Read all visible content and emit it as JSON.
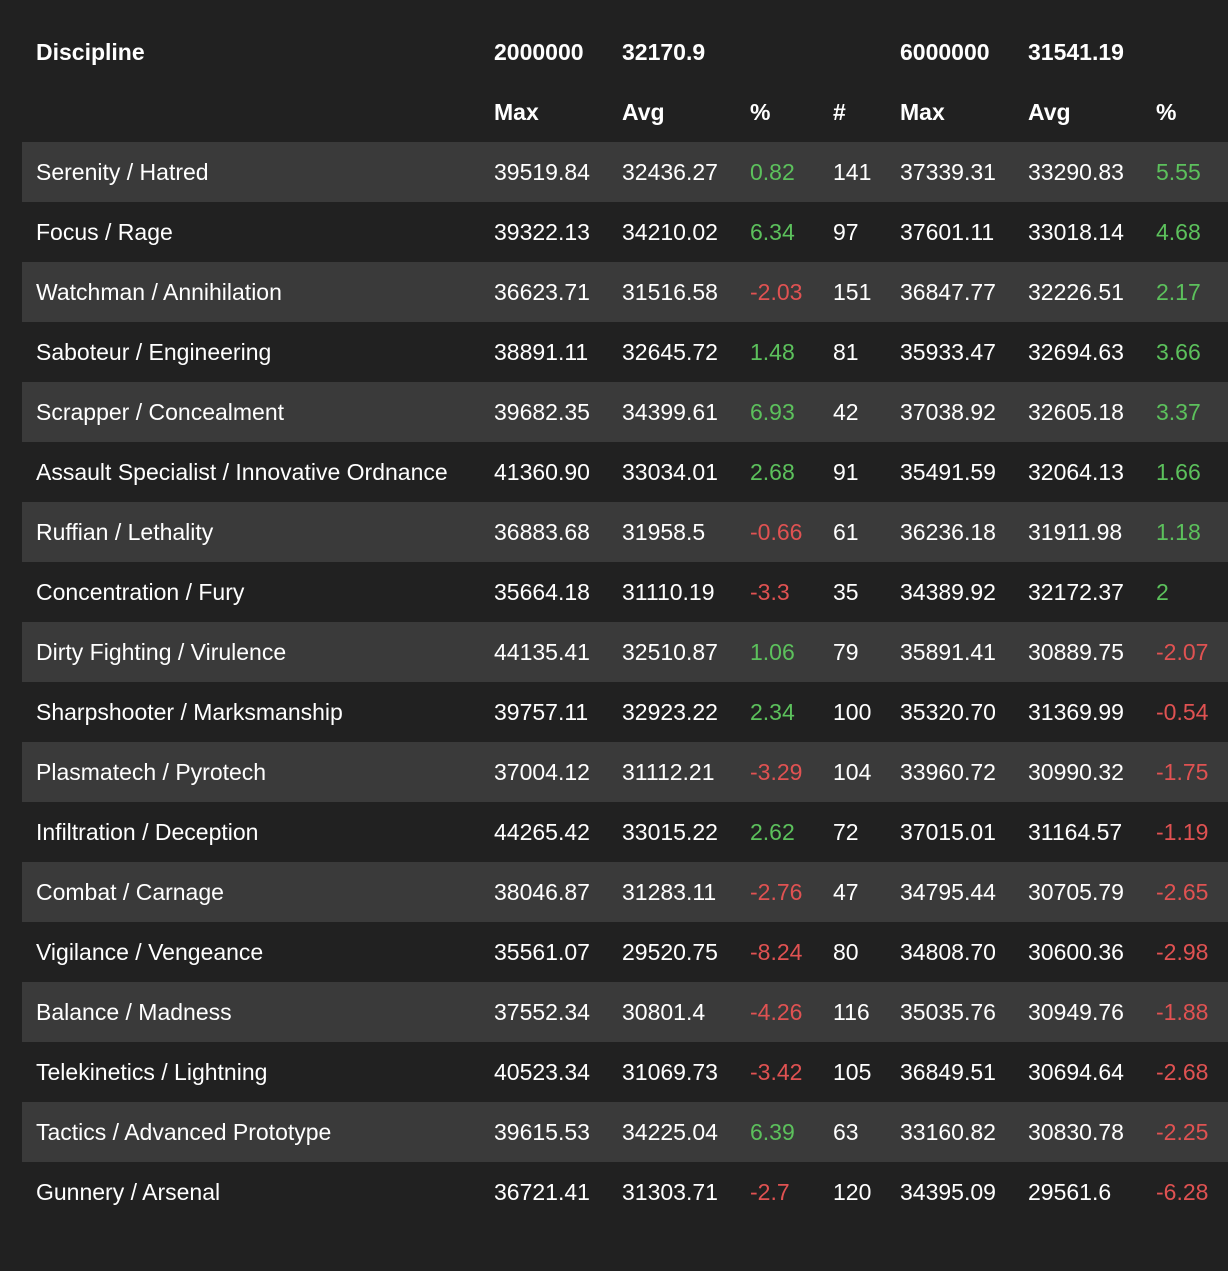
{
  "header": {
    "discipline_label": "Discipline",
    "group1_max_value": "2000000",
    "group1_avg_value": "32170.9",
    "group2_max_value": "6000000",
    "group2_avg_value": "31541.19",
    "max_label": "Max",
    "avg_label": "Avg",
    "pct_label": "%",
    "count_label": "#"
  },
  "colors": {
    "background": "#212121",
    "row_alt": "#3a3a3a",
    "positive": "#5cc15c",
    "negative": "#e05252"
  },
  "rows": [
    {
      "discipline": "Serenity / Hatred",
      "max1": "39519.84",
      "avg1": "32436.27",
      "pct1": "0.82",
      "count": "141",
      "max2": "37339.31",
      "avg2": "33290.83",
      "pct2": "5.55"
    },
    {
      "discipline": "Focus / Rage",
      "max1": "39322.13",
      "avg1": "34210.02",
      "pct1": "6.34",
      "count": "97",
      "max2": "37601.11",
      "avg2": "33018.14",
      "pct2": "4.68"
    },
    {
      "discipline": "Watchman / Annihilation",
      "max1": "36623.71",
      "avg1": "31516.58",
      "pct1": "-2.03",
      "count": "151",
      "max2": "36847.77",
      "avg2": "32226.51",
      "pct2": "2.17"
    },
    {
      "discipline": "Saboteur / Engineering",
      "max1": "38891.11",
      "avg1": "32645.72",
      "pct1": "1.48",
      "count": "81",
      "max2": "35933.47",
      "avg2": "32694.63",
      "pct2": "3.66"
    },
    {
      "discipline": "Scrapper / Concealment",
      "max1": "39682.35",
      "avg1": "34399.61",
      "pct1": "6.93",
      "count": "42",
      "max2": "37038.92",
      "avg2": "32605.18",
      "pct2": "3.37"
    },
    {
      "discipline": "Assault Specialist / Innovative Ordnance",
      "max1": "41360.90",
      "avg1": "33034.01",
      "pct1": "2.68",
      "count": "91",
      "max2": "35491.59",
      "avg2": "32064.13",
      "pct2": "1.66"
    },
    {
      "discipline": "Ruffian / Lethality",
      "max1": "36883.68",
      "avg1": "31958.5",
      "pct1": "-0.66",
      "count": "61",
      "max2": "36236.18",
      "avg2": "31911.98",
      "pct2": "1.18"
    },
    {
      "discipline": "Concentration / Fury",
      "max1": "35664.18",
      "avg1": "31110.19",
      "pct1": "-3.3",
      "count": "35",
      "max2": "34389.92",
      "avg2": "32172.37",
      "pct2": "2"
    },
    {
      "discipline": "Dirty Fighting / Virulence",
      "max1": "44135.41",
      "avg1": "32510.87",
      "pct1": "1.06",
      "count": "79",
      "max2": "35891.41",
      "avg2": "30889.75",
      "pct2": "-2.07"
    },
    {
      "discipline": "Sharpshooter / Marksmanship",
      "max1": "39757.11",
      "avg1": "32923.22",
      "pct1": "2.34",
      "count": "100",
      "max2": "35320.70",
      "avg2": "31369.99",
      "pct2": "-0.54"
    },
    {
      "discipline": "Plasmatech / Pyrotech",
      "max1": "37004.12",
      "avg1": "31112.21",
      "pct1": "-3.29",
      "count": "104",
      "max2": "33960.72",
      "avg2": "30990.32",
      "pct2": "-1.75"
    },
    {
      "discipline": "Infiltration / Deception",
      "max1": "44265.42",
      "avg1": "33015.22",
      "pct1": "2.62",
      "count": "72",
      "max2": "37015.01",
      "avg2": "31164.57",
      "pct2": "-1.19"
    },
    {
      "discipline": "Combat / Carnage",
      "max1": "38046.87",
      "avg1": "31283.11",
      "pct1": "-2.76",
      "count": "47",
      "max2": "34795.44",
      "avg2": "30705.79",
      "pct2": "-2.65"
    },
    {
      "discipline": "Vigilance / Vengeance",
      "max1": "35561.07",
      "avg1": "29520.75",
      "pct1": "-8.24",
      "count": "80",
      "max2": "34808.70",
      "avg2": "30600.36",
      "pct2": "-2.98"
    },
    {
      "discipline": "Balance / Madness",
      "max1": "37552.34",
      "avg1": "30801.4",
      "pct1": "-4.26",
      "count": "116",
      "max2": "35035.76",
      "avg2": "30949.76",
      "pct2": "-1.88"
    },
    {
      "discipline": "Telekinetics / Lightning",
      "max1": "40523.34",
      "avg1": "31069.73",
      "pct1": "-3.42",
      "count": "105",
      "max2": "36849.51",
      "avg2": "30694.64",
      "pct2": "-2.68"
    },
    {
      "discipline": "Tactics / Advanced Prototype",
      "max1": "39615.53",
      "avg1": "34225.04",
      "pct1": "6.39",
      "count": "63",
      "max2": "33160.82",
      "avg2": "30830.78",
      "pct2": "-2.25"
    },
    {
      "discipline": "Gunnery / Arsenal",
      "max1": "36721.41",
      "avg1": "31303.71",
      "pct1": "-2.7",
      "count": "120",
      "max2": "34395.09",
      "avg2": "29561.6",
      "pct2": "-6.28"
    }
  ]
}
